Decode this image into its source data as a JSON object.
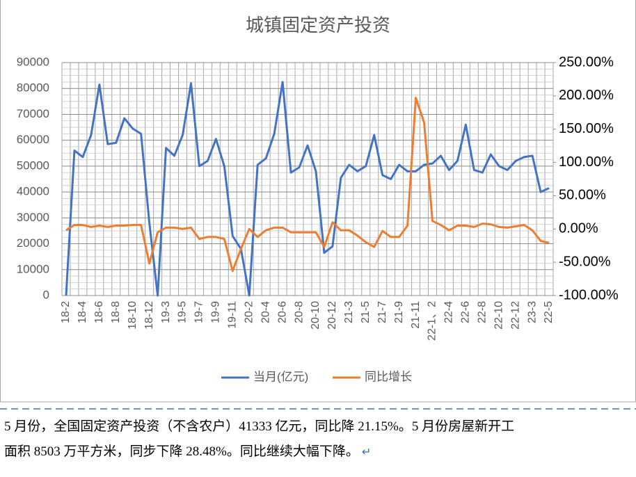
{
  "chart_data": {
    "type": "line",
    "title": "城镇固定资产投资",
    "categories": [
      "18-2",
      null,
      "18-4",
      null,
      "18-6",
      null,
      "18-8",
      null,
      "18-10",
      null,
      "18-12",
      null,
      "19-3",
      null,
      "19-5",
      null,
      "19-7",
      null,
      "19-9",
      null,
      "19-11",
      null,
      "20-2",
      null,
      "20-4",
      null,
      "20-6",
      null,
      "20-8",
      null,
      "20-10",
      null,
      "20-12",
      null,
      "21-3",
      null,
      "21-5",
      null,
      "21-7",
      null,
      "21-9",
      null,
      "21-11",
      null,
      "22-1、2",
      null,
      "22-4",
      null,
      "22-6",
      null,
      "22-8",
      null,
      "22-10",
      null,
      "22-12",
      null,
      "23-3",
      null,
      "22-5"
    ],
    "series": [
      {
        "name": "当月(亿元)",
        "color": "#4472c4",
        "axis": "y",
        "values": [
          0,
          56000,
          53500,
          62000,
          81500,
          58500,
          59000,
          68500,
          64500,
          62500,
          28000,
          0,
          57000,
          54000,
          62000,
          82000,
          50000,
          52000,
          60500,
          50000,
          23000,
          18000,
          0,
          50500,
          53000,
          62500,
          82500,
          47500,
          49500,
          58000,
          48000,
          16500,
          19000,
          45500,
          50500,
          48000,
          50000,
          62000,
          46500,
          45000,
          50500,
          48000,
          48000,
          50500,
          51000,
          54000,
          48500,
          52000,
          66000,
          48500,
          47500,
          54500,
          50000,
          48500,
          52000,
          53500,
          54000,
          40000,
          41500
        ]
      },
      {
        "name": "同比增长",
        "color": "#ed7d31",
        "axis": "y2",
        "values": [
          -2,
          6,
          6,
          3,
          5,
          3,
          5,
          5,
          6,
          6,
          -52,
          -5,
          2,
          2,
          0,
          2,
          -15,
          -12,
          -12,
          -15,
          -63,
          -30,
          0,
          -12,
          -2,
          2,
          2,
          -5,
          -5,
          -5,
          -5,
          -27,
          10,
          -2,
          -2,
          -10,
          -20,
          -27,
          -3,
          -12,
          -12,
          5,
          197,
          160,
          12,
          6,
          -2,
          5,
          5,
          3,
          8,
          7,
          3,
          2,
          4,
          6,
          -2,
          -18,
          -21
        ]
      }
    ],
    "ylim": [
      0,
      90000
    ],
    "yticks": [
      0,
      10000,
      20000,
      30000,
      40000,
      50000,
      60000,
      70000,
      80000,
      90000
    ],
    "y2lim": [
      -100,
      250
    ],
    "y2ticks": [
      {
        "value": -100,
        "label": "-100.00%"
      },
      {
        "value": -50,
        "label": "-50.00%"
      },
      {
        "value": 0,
        "label": "0.00%"
      },
      {
        "value": 50,
        "label": "50.00%"
      },
      {
        "value": 100,
        "label": "100.00%"
      },
      {
        "value": 150,
        "label": "150.00%"
      },
      {
        "value": 200,
        "label": "200.00%"
      },
      {
        "value": 250,
        "label": "250.00%"
      }
    ],
    "grid": true,
    "legend": "bottom"
  },
  "document": {
    "lines": [
      "5 月份，全国固定资产投资（不含农户）41333 亿元，同比降 21.15%。5 月份房屋新开工",
      "面积 8503 万平方米，同步下降 28.48%。同比继续大幅下降。"
    ]
  }
}
